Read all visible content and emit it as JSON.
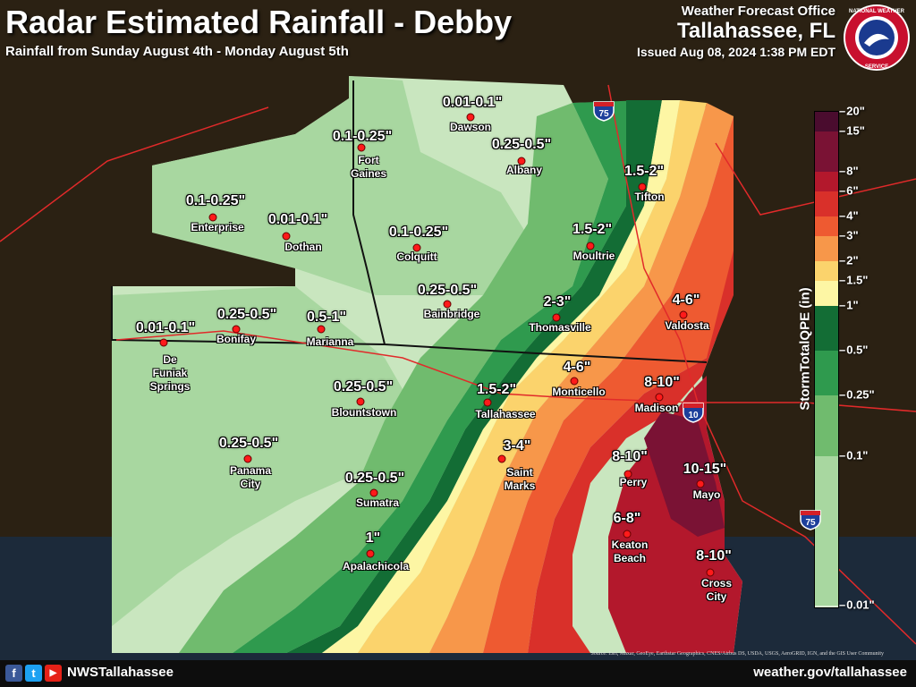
{
  "header": {
    "title": "Radar Estimated Rainfall - Debby",
    "subtitle": "Rainfall from Sunday August 4th - Monday August 5th",
    "office_line1": "Weather Forecast Office",
    "office_line2": "Tallahassee, FL",
    "issued": "Issued Aug 08, 2024 1:38 PM EDT",
    "logo_text": "NATIONAL WEATHER SERVICE"
  },
  "legend": {
    "title": "StormTotalQPE (in)",
    "ticks": [
      "20\"",
      "15\"",
      "8\"",
      "6\"",
      "4\"",
      "3\"",
      "2\"",
      "1.5\"",
      "1\"",
      "0.5\"",
      "0.25\"",
      "0.1\"",
      "0.01\""
    ],
    "colors": [
      "#4a0c2e",
      "#7a1234",
      "#b3182c",
      "#d9302a",
      "#ee5a31",
      "#f7974a",
      "#fbd36c",
      "#fdf6a4",
      "#136d35",
      "#2f9a4e",
      "#70bb6e",
      "#a8d7a0",
      "#dcefd5"
    ]
  },
  "rainfall_labels": [
    {
      "text": "0.01-0.1\""
    },
    {
      "text": "0.25-0.5\""
    },
    {
      "text": "0.1-0.25\""
    },
    {
      "text": "0.1-0.25\""
    },
    {
      "text": "0.01-0.1\""
    },
    {
      "text": "0.1-0.25\""
    },
    {
      "text": "0.25-0.5\""
    },
    {
      "text": "1.5-2\""
    },
    {
      "text": "1.5-2\""
    },
    {
      "text": "0.01-0.1\""
    },
    {
      "text": "0.25-0.5\""
    },
    {
      "text": "0.5-1\""
    },
    {
      "text": "2-3\""
    },
    {
      "text": "4-6\""
    },
    {
      "text": "0.25-0.5\""
    },
    {
      "text": "4-6\""
    },
    {
      "text": "8-10\""
    },
    {
      "text": "1.5-2\""
    },
    {
      "text": "0.25-0.5\""
    },
    {
      "text": "3-4\""
    },
    {
      "text": "8-10\""
    },
    {
      "text": "10-15\""
    },
    {
      "text": "0.25-0.5\""
    },
    {
      "text": "6-8\""
    },
    {
      "text": "1\""
    },
    {
      "text": "8-10\""
    }
  ],
  "cities": [
    {
      "name": "Dawson"
    },
    {
      "name": "Fort\nGaines"
    },
    {
      "name": "Albany"
    },
    {
      "name": "Tifton"
    },
    {
      "name": "Enterprise"
    },
    {
      "name": "Dothan"
    },
    {
      "name": "Colquitt"
    },
    {
      "name": "Moultrie"
    },
    {
      "name": "Bainbridge"
    },
    {
      "name": "Thomasville"
    },
    {
      "name": "Valdosta"
    },
    {
      "name": "De\nFuniak\nSprings"
    },
    {
      "name": "Bonifay"
    },
    {
      "name": "Marianna"
    },
    {
      "name": "Blountstown"
    },
    {
      "name": "Monticello"
    },
    {
      "name": "Tallahassee"
    },
    {
      "name": "Madison"
    },
    {
      "name": "Panama\nCity"
    },
    {
      "name": "Saint\nMarks"
    },
    {
      "name": "Perry"
    },
    {
      "name": "Mayo"
    },
    {
      "name": "Sumatra"
    },
    {
      "name": "Keaton\nBeach"
    },
    {
      "name": "Apalachicola"
    },
    {
      "name": "Cross\nCity"
    }
  ],
  "interstates": [
    "75",
    "10",
    "75"
  ],
  "footer": {
    "handle": "NWSTallahassee",
    "url": "weather.gov/tallahassee",
    "social": [
      "f",
      "t",
      "▶"
    ],
    "attribution": "Source: Esri, Maxar, GeoEye, Earthstar Geographics, CNES/Airbus DS, USDA, USGS, AeroGRID, IGN, and the GIS User Community"
  }
}
